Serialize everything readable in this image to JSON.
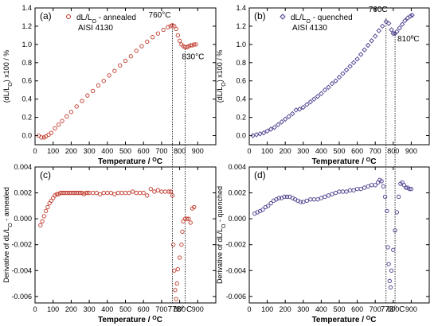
{
  "chart_data": [
    {
      "panel": "(a)",
      "type": "scatter",
      "legend": "dL/L",
      "legend_sub": "O",
      "legend_suffix": " - annealed",
      "material": "AISI 4130",
      "xlabel": "Temperature",
      "xunit": "/ ",
      "xunit_sup": "O",
      "xunit_end": "C",
      "ylabel": "(dL/L",
      "ylabel_sub": "O",
      "ylabel_end": ") x100  / %",
      "xlim": [
        0,
        1000
      ],
      "ylim": [
        -0.1,
        1.4
      ],
      "xticks": [
        "0",
        "100",
        "200",
        "300",
        "400",
        "500",
        "600",
        "700",
        "800",
        "900"
      ],
      "yticks": [
        "0.0",
        "0.2",
        "0.4",
        "0.6",
        "0.8",
        "1.0",
        "1.2",
        "1.4"
      ],
      "marker_color": "#c0392b",
      "marker": "circle",
      "annotations": [
        {
          "text": "760°C",
          "x": 760,
          "y": 1.21
        },
        {
          "text": "830°C",
          "x": 830,
          "y": 0.96
        }
      ],
      "x": [
        20,
        35,
        50,
        60,
        75,
        90,
        110,
        130,
        150,
        175,
        200,
        230,
        260,
        290,
        320,
        350,
        380,
        410,
        440,
        470,
        500,
        530,
        560,
        590,
        620,
        650,
        680,
        710,
        735,
        750,
        760,
        770,
        780,
        790,
        800,
        810,
        820,
        830,
        840,
        850,
        860,
        870,
        880,
        890
      ],
      "y": [
        0.0,
        -0.02,
        -0.02,
        -0.01,
        0.01,
        0.03,
        0.08,
        0.12,
        0.16,
        0.21,
        0.26,
        0.32,
        0.38,
        0.44,
        0.49,
        0.55,
        0.6,
        0.66,
        0.71,
        0.77,
        0.82,
        0.87,
        0.93,
        0.98,
        1.03,
        1.08,
        1.12,
        1.16,
        1.19,
        1.2,
        1.21,
        1.2,
        1.17,
        1.1,
        1.04,
        1.0,
        0.98,
        0.97,
        0.97,
        0.98,
        0.99,
        0.99,
        1.0,
        1.0
      ]
    },
    {
      "panel": "(b)",
      "type": "scatter",
      "legend": "dL/L",
      "legend_sub": "O",
      "legend_suffix": " - quenched",
      "material": "AISI 4130",
      "xlabel": "Temperature",
      "xunit": "/ ",
      "xunit_sup": "O",
      "xunit_end": "C",
      "ylabel": "(dL/L",
      "ylabel_sub": "O",
      "ylabel_end": ") x100  / %",
      "xlim": [
        0,
        1000
      ],
      "ylim": [
        -0.1,
        1.4
      ],
      "xticks": [
        "0",
        "100",
        "200",
        "300",
        "400",
        "500",
        "600",
        "700",
        "800",
        "900"
      ],
      "yticks": [
        "0.0",
        "0.2",
        "0.4",
        "0.6",
        "0.8",
        "1.0",
        "1.2",
        "1.4"
      ],
      "marker_color": "#4b3a8c",
      "marker": "diamond",
      "annotations": [
        {
          "text": "760C",
          "x": 760,
          "y": 1.27
        },
        {
          "text": "810ºC",
          "x": 810,
          "y": 1.12
        }
      ],
      "x": [
        20,
        40,
        60,
        80,
        100,
        120,
        140,
        160,
        180,
        200,
        220,
        240,
        260,
        280,
        300,
        320,
        340,
        360,
        380,
        400,
        420,
        440,
        460,
        480,
        500,
        520,
        540,
        560,
        580,
        600,
        620,
        640,
        660,
        680,
        700,
        720,
        740,
        760,
        775,
        790,
        800,
        810,
        820,
        835,
        850,
        865,
        880,
        895,
        905
      ],
      "y": [
        0.0,
        0.01,
        0.02,
        0.03,
        0.05,
        0.07,
        0.09,
        0.12,
        0.15,
        0.18,
        0.21,
        0.24,
        0.28,
        0.29,
        0.31,
        0.34,
        0.37,
        0.4,
        0.43,
        0.46,
        0.5,
        0.53,
        0.57,
        0.6,
        0.64,
        0.68,
        0.72,
        0.76,
        0.8,
        0.84,
        0.89,
        0.94,
        0.99,
        1.04,
        1.09,
        1.15,
        1.2,
        1.25,
        1.23,
        1.16,
        1.12,
        1.12,
        1.14,
        1.18,
        1.22,
        1.26,
        1.29,
        1.31,
        1.32
      ]
    },
    {
      "panel": "(c)",
      "type": "scatter",
      "xlabel": "Temperature",
      "xunit": "/ ",
      "xunit_sup": "O",
      "xunit_end": "C",
      "ylabel": "Derivative of dL/L",
      "ylabel_sub": "O",
      "ylabel_end": " - annealed",
      "xlim": [
        0,
        1000
      ],
      "ylim": [
        -0.0065,
        0.004
      ],
      "xticks": [
        "0",
        "100",
        "200",
        "300",
        "400",
        "500",
        "600",
        "700",
        "800",
        "900"
      ],
      "yticks": [
        "-0.006",
        "-0.004",
        "-0.002",
        "0.000",
        "0.002",
        "0.004"
      ],
      "marker_color": "#c0392b",
      "marker": "circle",
      "annotations": [
        {
          "text": "778° C",
          "x": 778,
          "y": -0.0062
        }
      ],
      "x": [
        30,
        40,
        50,
        60,
        70,
        80,
        90,
        100,
        110,
        120,
        130,
        140,
        150,
        160,
        170,
        180,
        190,
        200,
        210,
        220,
        230,
        240,
        250,
        260,
        270,
        280,
        290,
        300,
        320,
        340,
        360,
        380,
        400,
        420,
        440,
        460,
        480,
        500,
        520,
        540,
        560,
        580,
        600,
        620,
        640,
        660,
        680,
        700,
        720,
        740,
        750,
        760,
        765,
        770,
        775,
        780,
        785,
        790,
        800,
        810,
        815,
        820,
        830,
        840,
        850,
        860,
        870,
        880
      ],
      "y": [
        -0.0005,
        -0.0002,
        0.0002,
        0.0006,
        0.0009,
        0.0012,
        0.0014,
        0.0016,
        0.0018,
        0.0019,
        0.0019,
        0.002,
        0.002,
        0.002,
        0.002,
        0.002,
        0.002,
        0.002,
        0.002,
        0.002,
        0.002,
        0.002,
        0.002,
        0.002,
        0.0019,
        0.002,
        0.002,
        0.002,
        0.002,
        0.002,
        0.0019,
        0.002,
        0.002,
        0.002,
        0.0019,
        0.002,
        0.002,
        0.002,
        0.002,
        0.0021,
        0.002,
        0.002,
        0.002,
        0.0018,
        0.0023,
        0.0021,
        0.0022,
        0.0021,
        0.0021,
        0.0021,
        0.0021,
        0.0018,
        -0.002,
        -0.004,
        -0.0055,
        -0.0062,
        -0.005,
        -0.0039,
        -0.003,
        -0.002,
        -0.001,
        -0.0002,
        0.0,
        0.0,
        0.0,
        -0.0003,
        0.0008,
        0.0009
      ]
    },
    {
      "panel": "(d)",
      "type": "scatter",
      "xlabel": "Temperature",
      "xunit": "/ ",
      "xunit_sup": "O",
      "xunit_end": "C",
      "ylabel": "Derivative of dL/L",
      "ylabel_sub": "O",
      "ylabel_end": " - quenched",
      "xlim": [
        0,
        1000
      ],
      "ylim": [
        -0.0065,
        0.004
      ],
      "xticks": [
        "0",
        "100",
        "200",
        "300",
        "400",
        "500",
        "600",
        "700",
        "800",
        "900"
      ],
      "yticks": [
        "-0.006",
        "-0.004",
        "-0.002",
        "0.000",
        "0.002",
        "0.004"
      ],
      "marker_color": "#4b3a8c",
      "marker": "circle",
      "annotations": [
        {
          "text": "773° C",
          "x": 773,
          "y": -0.0062
        }
      ],
      "x": [
        30,
        45,
        60,
        75,
        90,
        105,
        120,
        135,
        150,
        165,
        180,
        195,
        210,
        225,
        240,
        255,
        270,
        285,
        300,
        320,
        340,
        360,
        380,
        400,
        420,
        440,
        460,
        480,
        500,
        520,
        540,
        560,
        580,
        600,
        620,
        640,
        660,
        680,
        700,
        715,
        725,
        735,
        745,
        755,
        765,
        770,
        775,
        780,
        785,
        790,
        800,
        810,
        820,
        830,
        840,
        850,
        860,
        870,
        880,
        890,
        900
      ],
      "y": [
        0.0004,
        0.0005,
        0.0006,
        0.0007,
        0.0009,
        0.001,
        0.0012,
        0.0014,
        0.0015,
        0.0016,
        0.0016,
        0.0017,
        0.0017,
        0.0017,
        0.0016,
        0.0015,
        0.0014,
        0.0013,
        0.0013,
        0.0014,
        0.0015,
        0.0015,
        0.0015,
        0.0016,
        0.0017,
        0.0018,
        0.0019,
        0.002,
        0.0021,
        0.0021,
        0.0021,
        0.0022,
        0.0022,
        0.0023,
        0.0023,
        0.0024,
        0.0025,
        0.0026,
        0.0026,
        0.0028,
        0.003,
        0.0029,
        0.0025,
        0.0017,
        0.0006,
        -0.0022,
        -0.0035,
        -0.0048,
        -0.0053,
        -0.004,
        -0.0024,
        -0.0009,
        0.0005,
        0.0017,
        0.0027,
        0.0028,
        0.0026,
        0.0024,
        0.0024,
        0.0023,
        0.0023
      ]
    }
  ]
}
